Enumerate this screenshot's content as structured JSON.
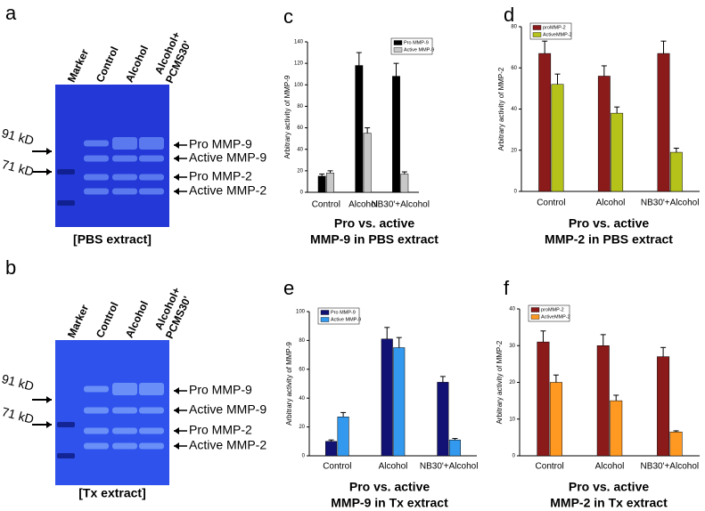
{
  "gels": [
    {
      "letter": "a",
      "lanes": [
        "Marker",
        "Control",
        "Alcohol",
        "Alcohol+",
        "PCMS30'"
      ],
      "sizes": [
        "91 kD",
        "71 kD"
      ],
      "bands": [
        "Pro MMP-9",
        "Active MMP-9",
        "Pro MMP-2",
        "Active MMP-2"
      ],
      "caption": "[PBS extract]"
    },
    {
      "letter": "b",
      "lanes": [
        "Marker",
        "Control",
        "Alcohol",
        "Alcohol+",
        "PCMS30'"
      ],
      "sizes": [
        "91 kD",
        "71 kD"
      ],
      "bands": [
        "Pro MMP-9",
        "Active MMP-9",
        "Pro MMP-2",
        "Active MMP-2"
      ],
      "caption": "[Tx extract]"
    }
  ],
  "chart_data": [
    {
      "type": "bar",
      "letter": "c",
      "title": "Pro vs. active",
      "subtitle": "MMP-9 in PBS extract",
      "y_label": "Arbitrary activity of MMP-9",
      "categories": [
        "Control",
        "Alcohol",
        "NB30'+Alcohol"
      ],
      "series": [
        {
          "name": "Pro MMP-9",
          "color": "#000000",
          "values": [
            15,
            118,
            108
          ],
          "errors": [
            2,
            12,
            12
          ]
        },
        {
          "name": "Active MMP-9",
          "color": "#c8c8c8",
          "values": [
            18,
            55,
            17
          ],
          "errors": [
            2,
            5,
            2
          ]
        }
      ],
      "ylim": [
        0,
        140
      ],
      "yticks": [
        0,
        20,
        40,
        60,
        80,
        100,
        120,
        140
      ],
      "legend": "upper right"
    },
    {
      "type": "bar",
      "letter": "d",
      "title": "Pro vs. active",
      "subtitle": "MMP-2 in PBS extract",
      "y_label": "Arbitrary activity of MMP-2",
      "categories": [
        "Control",
        "Alcohol",
        "NB30'+Alcohol"
      ],
      "series": [
        {
          "name": "proMMP-2",
          "color": "#8b1a1a",
          "values": [
            67,
            56,
            67
          ],
          "errors": [
            6,
            5,
            6
          ]
        },
        {
          "name": "ActiveMMP-2",
          "color": "#b5c21a",
          "values": [
            52,
            38,
            19
          ],
          "errors": [
            5,
            3,
            2
          ]
        }
      ],
      "ylim": [
        0,
        80
      ],
      "yticks": [
        0,
        20,
        40,
        60,
        80
      ],
      "legend": "upper left"
    },
    {
      "type": "bar",
      "letter": "e",
      "title": "Pro vs. active",
      "subtitle": "MMP-9 in Tx extract",
      "y_label": "Arbitrary activity of MMP-9",
      "categories": [
        "Control",
        "Alcohol",
        "NB30'+Alcohol"
      ],
      "series": [
        {
          "name": "Pro MMP-9",
          "color": "#121275",
          "values": [
            10,
            81,
            51
          ],
          "errors": [
            1,
            8,
            4
          ]
        },
        {
          "name": "Active MMP-9",
          "color": "#3399ee",
          "values": [
            27,
            75,
            11
          ],
          "errors": [
            3,
            7,
            1
          ]
        }
      ],
      "ylim": [
        0,
        100
      ],
      "yticks": [
        0,
        20,
        40,
        60,
        80,
        100
      ],
      "legend": "upper left"
    },
    {
      "type": "bar",
      "letter": "f",
      "title": "Pro vs. active",
      "subtitle": "MMP-2 in Tx extract",
      "y_label": "Arbitrary activity of MMP-2",
      "categories": [
        "Control",
        "Alcohol",
        "NB30'+Alcohol"
      ],
      "series": [
        {
          "name": "proMMP-2",
          "color": "#8b1a1a",
          "values": [
            31,
            30,
            27
          ],
          "errors": [
            3,
            3,
            2.5
          ]
        },
        {
          "name": "ActiveMMP-2",
          "color": "#ff9922",
          "values": [
            20,
            15,
            6.5
          ],
          "errors": [
            2,
            1.5,
            0.3
          ]
        }
      ],
      "ylim": [
        0,
        40
      ],
      "yticks": [
        0,
        10,
        20,
        30,
        40
      ],
      "legend": "upper left"
    }
  ]
}
